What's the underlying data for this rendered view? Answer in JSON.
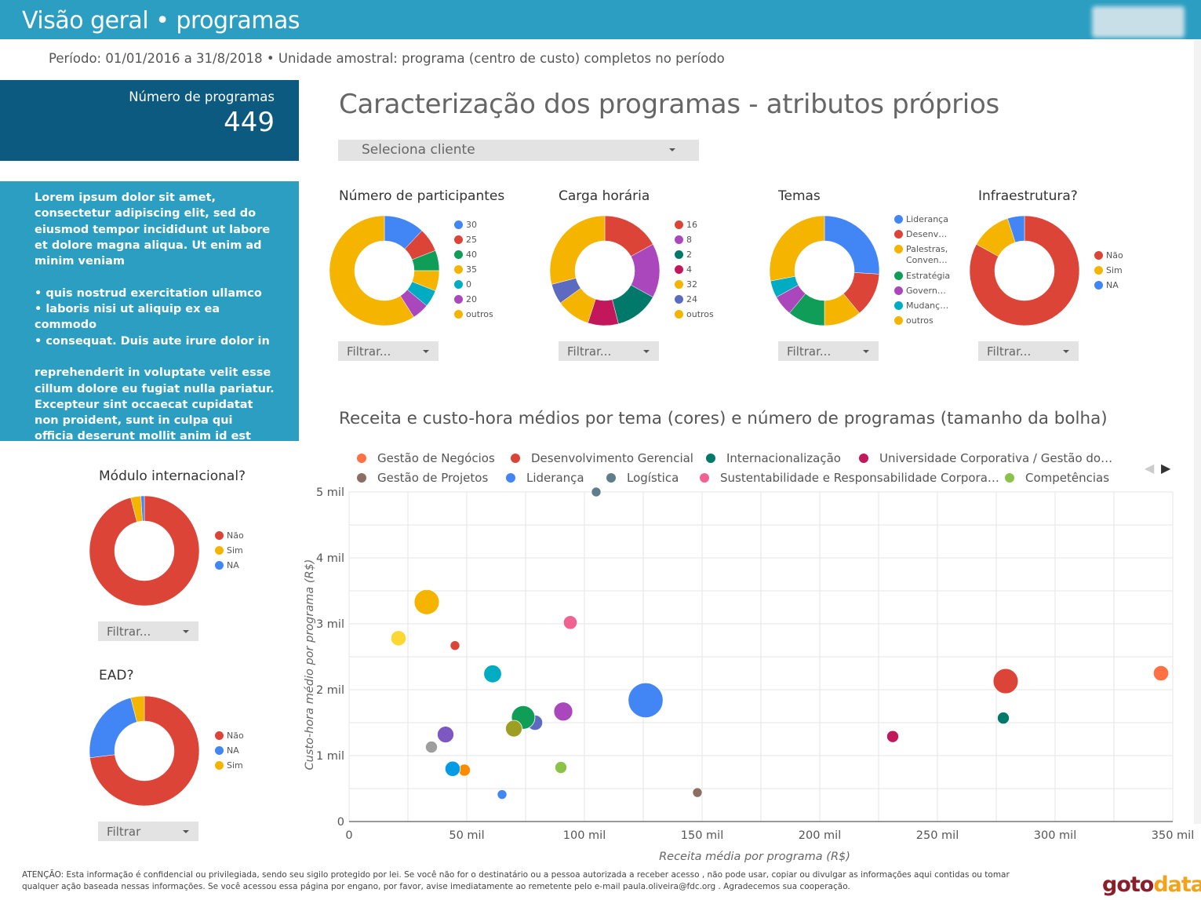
{
  "header": {
    "title": "Visão geral • programas",
    "subtitle": "Período: 01/01/2016 a 31/8/2018 • Unidade amostral:  programa (centro de custo) completos no período"
  },
  "kpi": {
    "label": "Número de programas",
    "value": "449"
  },
  "info": {
    "p1": "Lorem ipsum dolor sit amet, consectetur adipiscing elit, sed do eiusmod tempor incididunt ut labore et dolore magna aliqua. Ut enim ad minim veniam",
    "b1": "• quis nostrud exercitation ullamco",
    "b2": "• laboris nisi ut aliquip ex ea commodo",
    "b3": "• consequat. Duis aute irure dolor in",
    "p2": "reprehenderit in voluptate velit esse cillum dolore eu fugiat nulla pariatur. Excepteur sint occaecat cupidatat non proident, sunt in culpa qui officia deserunt mollit anim id est laborum."
  },
  "section_title": "Caracterização dos programas - atributos próprios",
  "client_select": {
    "label": "Seleciona cliente"
  },
  "donuts": [
    {
      "id": "participantes",
      "title": "Número de participantes",
      "filter": "Filtrar...",
      "slices": [
        {
          "label": "30",
          "value": 12,
          "color": "#4285f4"
        },
        {
          "label": "25",
          "value": 7,
          "color": "#db4437"
        },
        {
          "label": "40",
          "value": 6,
          "color": "#0f9d58"
        },
        {
          "label": "35",
          "value": 6,
          "color": "#f4b400"
        },
        {
          "label": "0",
          "value": 5,
          "color": "#00acc1"
        },
        {
          "label": "20",
          "value": 5,
          "color": "#ab47bc"
        },
        {
          "label": "outros",
          "value": 59,
          "color": "#f4b400"
        }
      ]
    },
    {
      "id": "carga",
      "title": "Carga horária",
      "filter": "Filtrar...",
      "slices": [
        {
          "label": "16",
          "value": 17,
          "color": "#db4437"
        },
        {
          "label": "8",
          "value": 16,
          "color": "#ab47bc"
        },
        {
          "label": "2",
          "value": 13,
          "color": "#00796b"
        },
        {
          "label": "4",
          "value": 9,
          "color": "#c2185b"
        },
        {
          "label": "32",
          "value": 10,
          "color": "#f4b400"
        },
        {
          "label": "24",
          "value": 6,
          "color": "#5c6bc0"
        },
        {
          "label": "outros",
          "value": 29,
          "color": "#f4b400"
        }
      ]
    },
    {
      "id": "temas",
      "title": "Temas",
      "filter": "Filtrar...",
      "slices": [
        {
          "label": "Liderança",
          "value": 26,
          "color": "#4285f4"
        },
        {
          "label": "Desenv…",
          "value": 13,
          "color": "#db4437"
        },
        {
          "label": "Palestras, Conven…",
          "value": 11,
          "color": "#f4b400"
        },
        {
          "label": "Estratégia",
          "value": 11,
          "color": "#0f9d58"
        },
        {
          "label": "Govern…",
          "value": 6,
          "color": "#ab47bc"
        },
        {
          "label": "Mudanç…",
          "value": 5,
          "color": "#00acc1"
        },
        {
          "label": "outros",
          "value": 28,
          "color": "#f4b400"
        }
      ]
    },
    {
      "id": "infra",
      "title": "Infraestrutura?",
      "filter": "Filtrar...",
      "slices": [
        {
          "label": "Não",
          "value": 83,
          "color": "#db4437"
        },
        {
          "label": "Sim",
          "value": 12,
          "color": "#f4b400"
        },
        {
          "label": "NA",
          "value": 5,
          "color": "#4285f4"
        }
      ]
    },
    {
      "id": "modulo",
      "title": "Módulo internacional?",
      "filter": "Filtrar...",
      "slices": [
        {
          "label": "Não",
          "value": 96,
          "color": "#db4437"
        },
        {
          "label": "Sim",
          "value": 3,
          "color": "#f4b400"
        },
        {
          "label": "NA",
          "value": 1,
          "color": "#4285f4"
        }
      ]
    },
    {
      "id": "ead",
      "title": "EAD?",
      "filter": "Filtrar",
      "slices": [
        {
          "label": "Não",
          "value": 73,
          "color": "#db4437"
        },
        {
          "label": "NA",
          "value": 23,
          "color": "#4285f4"
        },
        {
          "label": "Sim",
          "value": 4,
          "color": "#f4b400"
        }
      ]
    }
  ],
  "bubble": {
    "title": "Receita e custo-hora médios por tema (cores) e número de programas (tamanho da bolha)",
    "legend": [
      {
        "name": "Gestão de Negócios",
        "color": "#ff7043"
      },
      {
        "name": "Desenvolvimento Gerencial",
        "color": "#db4437"
      },
      {
        "name": "Internacionalização",
        "color": "#00796b"
      },
      {
        "name": "Universidade Corporativa / Gestão do…",
        "color": "#c2185b"
      },
      {
        "name": "Gestão de Projetos",
        "color": "#8d6e63"
      },
      {
        "name": "Liderança",
        "color": "#4285f4"
      },
      {
        "name": "Logística",
        "color": "#607d8b"
      },
      {
        "name": "Sustentabilidade e Responsabilidade Corpora…",
        "color": "#f06292"
      },
      {
        "name": "Competências",
        "color": "#8bc34a"
      }
    ],
    "pager_prev": "◀",
    "pager_next": "▶"
  },
  "chart_data": {
    "type": "scatter",
    "title": "Receita e custo-hora médios por tema (cores) e número de programas (tamanho da bolha)",
    "xlabel": "Receita média por programa (R$)",
    "ylabel": "Custo-hora médio por programa (R$)",
    "xlim": [
      0,
      350000
    ],
    "ylim": [
      0,
      5000
    ],
    "xticks": [
      "0",
      "50 mil",
      "100 mil",
      "150 mil",
      "200 mil",
      "250 mil",
      "300 mil",
      "350 mil"
    ],
    "yticks": [
      "0",
      "1 mil",
      "2 mil",
      "3 mil",
      "4 mil",
      "5 mil"
    ],
    "grid": true,
    "points": [
      {
        "x": 345000,
        "y": 2250,
        "size": 4,
        "color": "#ff7043"
      },
      {
        "x": 279000,
        "y": 2130,
        "size": 14,
        "color": "#db4437"
      },
      {
        "x": 278000,
        "y": 1570,
        "size": 2,
        "color": "#00796b"
      },
      {
        "x": 231000,
        "y": 1290,
        "size": 2,
        "color": "#c2185b"
      },
      {
        "x": 148000,
        "y": 440,
        "size": 1,
        "color": "#8d6e63"
      },
      {
        "x": 126000,
        "y": 1840,
        "size": 30,
        "color": "#4285f4"
      },
      {
        "x": 105000,
        "y": 5000,
        "size": 1,
        "color": "#607d8b"
      },
      {
        "x": 94000,
        "y": 3020,
        "size": 3,
        "color": "#f06292"
      },
      {
        "x": 91000,
        "y": 1670,
        "size": 7,
        "color": "#ab47bc"
      },
      {
        "x": 90000,
        "y": 820,
        "size": 2,
        "color": "#8bc34a"
      },
      {
        "x": 79000,
        "y": 1500,
        "size": 4,
        "color": "#5c6bc0"
      },
      {
        "x": 74000,
        "y": 1580,
        "size": 12,
        "color": "#0f9d58"
      },
      {
        "x": 70000,
        "y": 1410,
        "size": 5,
        "color": "#9e9d24"
      },
      {
        "x": 65000,
        "y": 410,
        "size": 1,
        "color": "#4285f4"
      },
      {
        "x": 61000,
        "y": 2240,
        "size": 6,
        "color": "#00acc1"
      },
      {
        "x": 49000,
        "y": 780,
        "size": 2,
        "color": "#fb8c00"
      },
      {
        "x": 44000,
        "y": 800,
        "size": 4,
        "color": "#039be5"
      },
      {
        "x": 45000,
        "y": 2670,
        "size": 1,
        "color": "#db4437"
      },
      {
        "x": 41000,
        "y": 1320,
        "size": 5,
        "color": "#7e57c2"
      },
      {
        "x": 35000,
        "y": 1130,
        "size": 2,
        "color": "#9e9e9e"
      },
      {
        "x": 33000,
        "y": 3330,
        "size": 14,
        "color": "#f4b400"
      },
      {
        "x": 21000,
        "y": 2780,
        "size": 4,
        "color": "#fdd835"
      }
    ]
  },
  "footer": {
    "notice": "ATENÇÃO: Esta informação é confidencial ou privilegiada, sendo seu sigilo protegido por lei. Se você não for o destinatário ou a pessoa autorizada a receber acesso , não pode usar, copiar ou divulgar as informações aqui contidas ou tomar qualquer ação baseada nessas informações. Se você acessou essa página por engano, por favor, avise imediatamente ao remetente pelo e-mail paula.oliveira@fdc.org . Agradecemos sua cooperação.",
    "brand": "gotodata"
  }
}
